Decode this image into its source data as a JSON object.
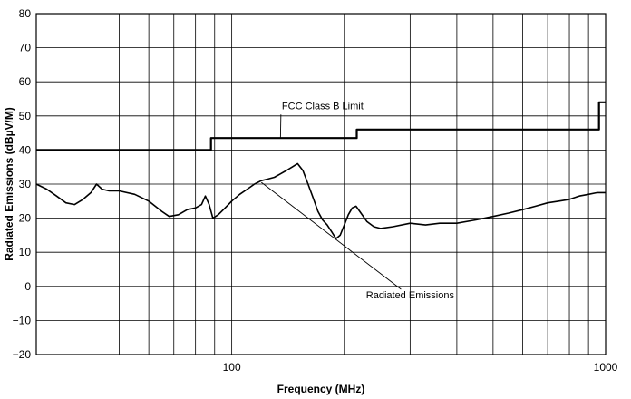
{
  "chart_data": {
    "type": "line",
    "title": "",
    "xlabel": "Frequency (MHz)",
    "ylabel": "Radiated Emissions (dBµV/M)",
    "x_scale": "log",
    "xlim": [
      30,
      1000
    ],
    "ylim": [
      -20,
      80
    ],
    "yticks": [
      -20,
      -10,
      0,
      10,
      20,
      30,
      40,
      50,
      60,
      70,
      80
    ],
    "y_tick_labels": [
      "−20",
      "−10",
      "0",
      "10",
      "20",
      "30",
      "40",
      "50",
      "60",
      "70",
      "80"
    ],
    "x_tick_labels": [
      {
        "value": 100,
        "label": "100"
      },
      {
        "value": 1000,
        "label": "1000"
      }
    ],
    "x_gridlines": [
      30,
      40,
      50,
      60,
      70,
      80,
      90,
      100,
      200,
      300,
      400,
      500,
      600,
      700,
      800,
      900,
      1000
    ],
    "grid": true,
    "line_colors": {
      "limit": "#000000",
      "emissions": "#000000"
    },
    "series": [
      {
        "name": "FCC Class B Limit",
        "step": true,
        "x": [
          30,
          88,
          88,
          216,
          216,
          960,
          960,
          1000
        ],
        "y": [
          40,
          40,
          43.5,
          43.5,
          46,
          46,
          54,
          54
        ]
      },
      {
        "name": "Radiated Emissions",
        "x": [
          30,
          32,
          34,
          36,
          38,
          40,
          42,
          43.5,
          45,
          47,
          50,
          55,
          60,
          65,
          68,
          72,
          76,
          80,
          83,
          85,
          87,
          89,
          92,
          96,
          100,
          105,
          110,
          115,
          120,
          125,
          130,
          135,
          140,
          145,
          150,
          155,
          160,
          165,
          170,
          175,
          180,
          185,
          190,
          195,
          200,
          205,
          210,
          215,
          220,
          230,
          240,
          250,
          270,
          300,
          330,
          360,
          400,
          450,
          500,
          550,
          600,
          650,
          700,
          750,
          800,
          850,
          900,
          950,
          1000
        ],
        "y": [
          30,
          28.5,
          26.5,
          24.5,
          24,
          25.5,
          27.5,
          30,
          28.5,
          28,
          28,
          27,
          25,
          22,
          20.5,
          21,
          22.5,
          23,
          24,
          26.5,
          24,
          20,
          21,
          23,
          25,
          27,
          28.5,
          30,
          31,
          31.5,
          32,
          33,
          34,
          35,
          36,
          34,
          30,
          26,
          22,
          19.5,
          18,
          16,
          14,
          15,
          18,
          21,
          23,
          23.5,
          22,
          19,
          17.5,
          17,
          17.5,
          18.5,
          18,
          18.5,
          18.5,
          19.5,
          20.5,
          21.5,
          22.5,
          23.5,
          24.5,
          25,
          25.5,
          26.5,
          27,
          27.5,
          27.5
        ]
      }
    ],
    "annotations": [
      {
        "text": "FCC Class B Limit",
        "series": 0,
        "x": 175,
        "y": 52,
        "arrow_to": {
          "x": 135,
          "y": 43.5
        }
      },
      {
        "text": "Radiated Emissions",
        "series": 1,
        "x": 300,
        "y": -3.5,
        "arrow_to": {
          "x": 120,
          "y": 30.5
        }
      }
    ]
  }
}
